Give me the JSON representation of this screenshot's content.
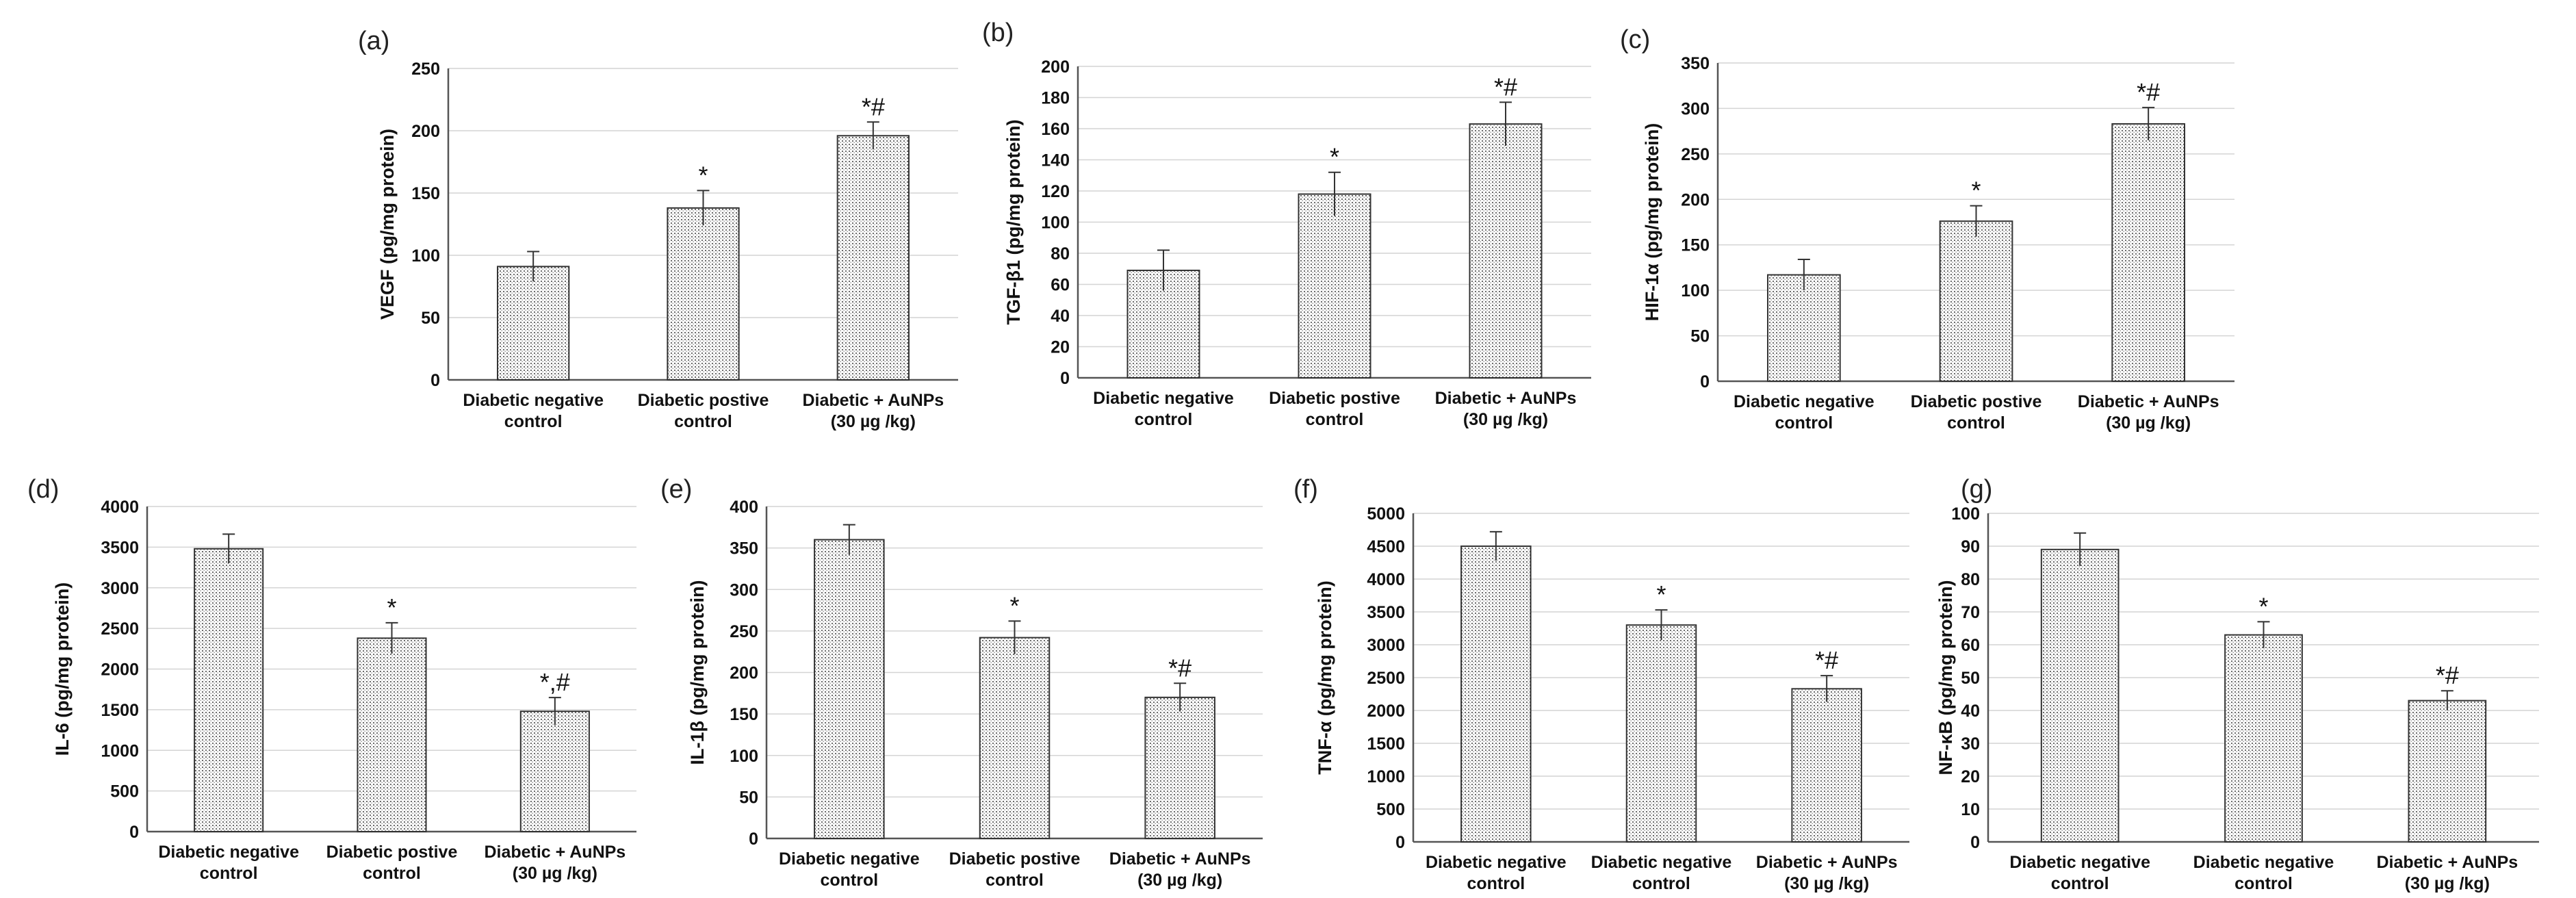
{
  "chart_data": [
    {
      "panel": "(a)",
      "type": "bar",
      "ylabel": "VEGF (pg/mg protein)",
      "ylim": [
        0,
        250
      ],
      "ytick_step": 50,
      "categories": [
        [
          "Diabetic negative",
          "control"
        ],
        [
          "Diabetic postive",
          "control"
        ],
        [
          "Diabetic + AuNPs",
          "(30 µg /kg)"
        ]
      ],
      "values": [
        91,
        138,
        196
      ],
      "errors": [
        12,
        14,
        11
      ],
      "significance": [
        "",
        "*",
        "*#"
      ]
    },
    {
      "panel": "(b)",
      "type": "bar",
      "ylabel": "TGF-β1 (pg/mg protein)",
      "ylim": [
        0,
        200
      ],
      "ytick_step": 20,
      "categories": [
        [
          "Diabetic negative",
          "control"
        ],
        [
          "Diabetic postive",
          "control"
        ],
        [
          "Diabetic + AuNPs",
          "(30 µg /kg)"
        ]
      ],
      "values": [
        69,
        118,
        163
      ],
      "errors": [
        13,
        14,
        14
      ],
      "significance": [
        "",
        "*",
        "*#"
      ]
    },
    {
      "panel": "(c)",
      "type": "bar",
      "ylabel": "HIF-1α (pg/mg protein)",
      "ylim": [
        0,
        350
      ],
      "ytick_step": 50,
      "categories": [
        [
          "Diabetic negative",
          "control"
        ],
        [
          "Diabetic postive",
          "control"
        ],
        [
          "Diabetic + AuNPs",
          "(30 µg /kg)"
        ]
      ],
      "values": [
        117,
        176,
        283
      ],
      "errors": [
        17,
        17,
        18
      ],
      "significance": [
        "",
        "*",
        "*#"
      ]
    },
    {
      "panel": "(d)",
      "type": "bar",
      "ylabel": "IL-6 (pg/mg protein)",
      "ylim": [
        0,
        4000
      ],
      "ytick_step": 500,
      "categories": [
        [
          "Diabetic negative",
          "control"
        ],
        [
          "Diabetic postive",
          "control"
        ],
        [
          "Diabetic + AuNPs",
          "(30 µg /kg)"
        ]
      ],
      "values": [
        3480,
        2380,
        1480
      ],
      "errors": [
        180,
        190,
        170
      ],
      "significance": [
        "",
        "*",
        "*,#"
      ]
    },
    {
      "panel": "(e)",
      "type": "bar",
      "ylabel": "IL-1β (pg/mg protein)",
      "ylim": [
        0,
        400
      ],
      "ytick_step": 50,
      "categories": [
        [
          "Diabetic negative",
          "control"
        ],
        [
          "Diabetic postive",
          "control"
        ],
        [
          "Diabetic + AuNPs",
          "(30 µg /kg)"
        ]
      ],
      "values": [
        360,
        242,
        170
      ],
      "errors": [
        18,
        20,
        17
      ],
      "significance": [
        "",
        "*",
        "*#"
      ]
    },
    {
      "panel": "(f)",
      "type": "bar",
      "ylabel": "TNF-α (pg/mg protein)",
      "ylim": [
        0,
        5000
      ],
      "ytick_step": 500,
      "categories": [
        [
          "Diabetic negative",
          "control"
        ],
        [
          "Diabetic negative",
          "control"
        ],
        [
          "Diabetic + AuNPs",
          "(30 µg /kg)"
        ]
      ],
      "values": [
        4500,
        3300,
        2330
      ],
      "errors": [
        220,
        230,
        200
      ],
      "significance": [
        "",
        "*",
        "*#"
      ]
    },
    {
      "panel": "(g)",
      "type": "bar",
      "ylabel": "NF-κB (pg/mg protein)",
      "ylim": [
        0,
        100
      ],
      "ytick_step": 10,
      "categories": [
        [
          "Diabetic negative",
          "control"
        ],
        [
          "Diabetic negative",
          "control"
        ],
        [
          "Diabetic + AuNPs",
          "(30 µg /kg)"
        ]
      ],
      "values": [
        89,
        63,
        43
      ],
      "errors": [
        5,
        4,
        3
      ],
      "significance": [
        "",
        "*",
        "*#"
      ]
    }
  ]
}
